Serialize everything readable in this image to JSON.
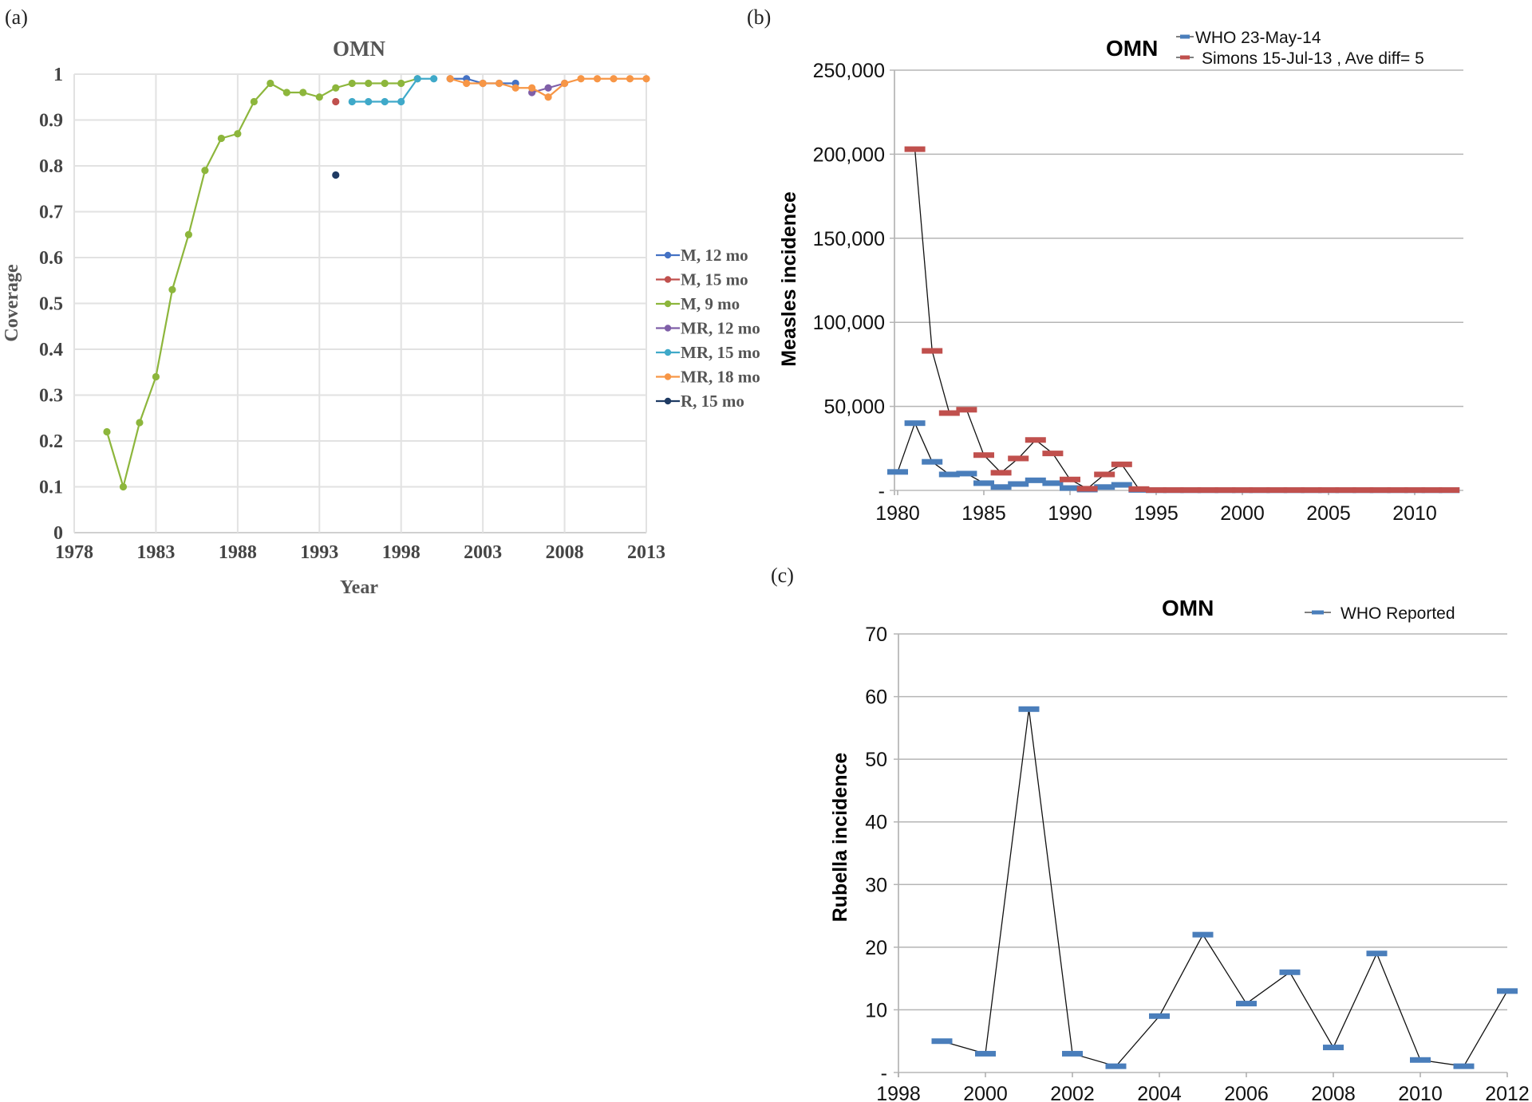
{
  "chart_data": [
    {
      "panel": "(a)",
      "type": "line",
      "title": "OMN",
      "xlabel": "Year",
      "ylabel": "Coverage",
      "xlim": [
        1978,
        2013
      ],
      "ylim": [
        0,
        1
      ],
      "xticks": [
        "1978",
        "1983",
        "1988",
        "1993",
        "1998",
        "2003",
        "2008",
        "2013"
      ],
      "yticks": [
        "0",
        "0.1",
        "0.2",
        "0.3",
        "0.4",
        "0.5",
        "0.6",
        "0.7",
        "0.8",
        "0.9",
        "1"
      ],
      "grid": true,
      "legend_position": "right",
      "series": [
        {
          "name": "M, 12 mo",
          "color": "#4472c4",
          "x": [
            2001,
            2002,
            2003,
            2004,
            2005
          ],
          "values": [
            0.99,
            0.99,
            0.98,
            0.98,
            0.98
          ]
        },
        {
          "name": "M, 15 mo",
          "color": "#c0504d",
          "x": [
            1994
          ],
          "values": [
            0.94
          ]
        },
        {
          "name": "M, 9 mo",
          "color": "#8db63c",
          "x": [
            1980,
            1981,
            1982,
            1983,
            1984,
            1985,
            1986,
            1987,
            1988,
            1989,
            1990,
            1991,
            1992,
            1993,
            1994,
            1995,
            1996,
            1997,
            1998,
            1999
          ],
          "values": [
            0.22,
            0.1,
            0.24,
            0.34,
            0.53,
            0.65,
            0.79,
            0.86,
            0.87,
            0.94,
            0.98,
            0.96,
            0.96,
            0.95,
            0.97,
            0.98,
            0.98,
            0.98,
            0.98,
            0.99
          ]
        },
        {
          "name": "MR, 12 mo",
          "color": "#7f5fa8",
          "x": [
            2006,
            2007,
            2008
          ],
          "values": [
            0.96,
            0.97,
            0.98
          ]
        },
        {
          "name": "MR, 15 mo",
          "color": "#3fa9c9",
          "x": [
            1995,
            1996,
            1997,
            1998,
            1999,
            2000
          ],
          "values": [
            0.94,
            0.94,
            0.94,
            0.94,
            0.99,
            0.99
          ]
        },
        {
          "name": "MR, 18 mo",
          "color": "#f79646",
          "x": [
            2001,
            2002,
            2003,
            2004,
            2005,
            2006,
            2007,
            2008,
            2009,
            2010,
            2011,
            2012,
            2013
          ],
          "values": [
            0.99,
            0.98,
            0.98,
            0.98,
            0.97,
            0.97,
            0.95,
            0.98,
            0.99,
            0.99,
            0.99,
            0.99,
            0.99
          ]
        },
        {
          "name": "R, 15 mo",
          "color": "#1f3b63",
          "x": [
            1994
          ],
          "values": [
            0.78
          ]
        }
      ]
    },
    {
      "panel": "(b)",
      "type": "line",
      "title": "OMN",
      "xlabel": "",
      "ylabel": "Measles incidence",
      "xlim": [
        1980,
        2012
      ],
      "ylim": [
        0,
        250000
      ],
      "xticks": [
        "1980",
        "1985",
        "1990",
        "1995",
        "2000",
        "2005",
        "2010"
      ],
      "yticks": [
        "-",
        "50,000",
        "100,000",
        "150,000",
        "200,000",
        "250,000"
      ],
      "grid": true,
      "legend_position": "top-right",
      "series": [
        {
          "name": "WHO 23-May-14",
          "color": "#4a7ebb",
          "x": [
            1980,
            1981,
            1982,
            1983,
            1984,
            1985,
            1986,
            1987,
            1988,
            1989,
            1990,
            1991,
            1992,
            1993,
            1994,
            1995,
            1996,
            1997,
            1998,
            1999,
            2000,
            2001,
            2002,
            2003,
            2004,
            2005,
            2006,
            2007,
            2008,
            2009,
            2010,
            2011,
            2012
          ],
          "values": [
            11000,
            40000,
            17000,
            9500,
            10000,
            4300,
            2000,
            3800,
            6000,
            4300,
            1400,
            500,
            2000,
            3300,
            300,
            100,
            100,
            100,
            100,
            100,
            100,
            100,
            100,
            100,
            100,
            100,
            100,
            100,
            100,
            100,
            100,
            100,
            100
          ]
        },
        {
          "name": "Simons 15-Jul-13 , Ave diff= 5",
          "color": "#c0504d",
          "x": [
            1981,
            1982,
            1983,
            1984,
            1985,
            1986,
            1987,
            1988,
            1989,
            1990,
            1991,
            1992,
            1993,
            1994,
            1995,
            1996,
            1997,
            1998,
            1999,
            2000,
            2001,
            2002,
            2003,
            2004,
            2005,
            2006,
            2007,
            2008,
            2009,
            2010,
            2011,
            2012
          ],
          "values": [
            203000,
            83000,
            46000,
            48000,
            21000,
            10500,
            19000,
            30000,
            22000,
            6500,
            1000,
            9500,
            15500,
            800,
            200,
            200,
            200,
            200,
            200,
            200,
            200,
            200,
            200,
            200,
            200,
            200,
            200,
            200,
            200,
            200,
            200,
            200
          ]
        }
      ]
    },
    {
      "panel": "(c)",
      "type": "line",
      "title": "OMN",
      "xlabel": "",
      "ylabel": "Rubella incidence",
      "xlim": [
        1998,
        2012
      ],
      "ylim": [
        0,
        70
      ],
      "xticks": [
        "1998",
        "2000",
        "2002",
        "2004",
        "2006",
        "2008",
        "2010",
        "2012"
      ],
      "yticks": [
        "-",
        "10",
        "20",
        "30",
        "40",
        "50",
        "60",
        "70"
      ],
      "grid": true,
      "legend_position": "top-right",
      "series": [
        {
          "name": "WHO Reported",
          "color": "#4a7ebb",
          "x": [
            1999,
            2000,
            2001,
            2002,
            2003,
            2004,
            2005,
            2006,
            2007,
            2008,
            2009,
            2010,
            2011,
            2012
          ],
          "values": [
            5,
            3,
            58,
            3,
            1,
            9,
            22,
            11,
            16,
            4,
            19,
            2,
            1,
            13
          ]
        }
      ]
    }
  ]
}
